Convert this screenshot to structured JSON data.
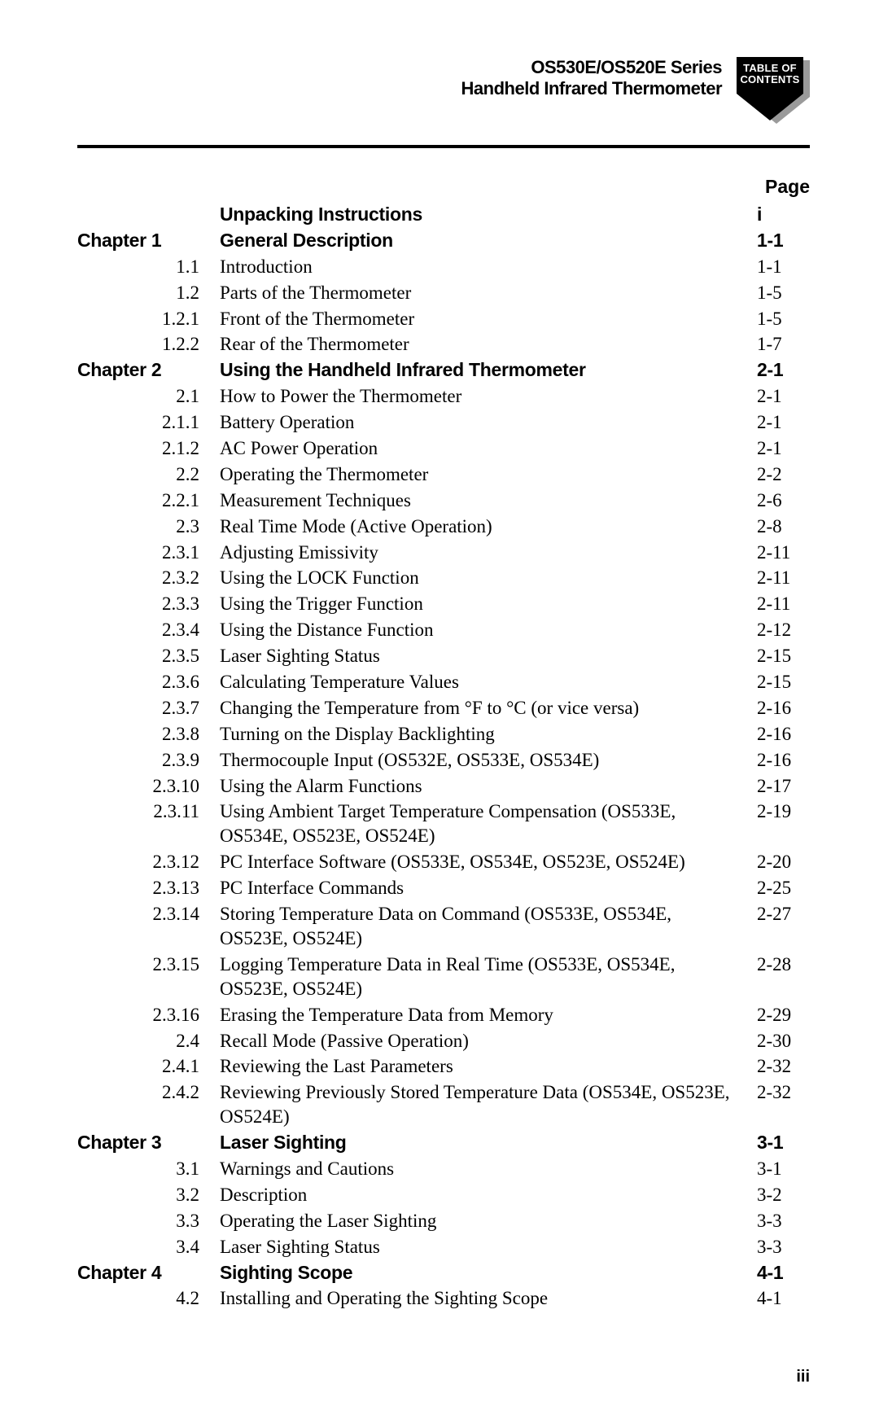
{
  "header": {
    "line1": "OS530E/OS520E Series",
    "line2": "Handheld Infrared Thermometer",
    "badge_line1": "TABLE OF",
    "badge_line2": "CONTENTS",
    "badge_fill": "#000000",
    "badge_shadow": "#9a9a9a"
  },
  "page_label": "Page",
  "footer": "iii",
  "toc": [
    {
      "bold": true,
      "num": "",
      "title": "Unpacking Instructions",
      "page": "i"
    },
    {
      "bold": true,
      "num": "Chapter  1",
      "title": "General Description",
      "page": "1-1"
    },
    {
      "bold": false,
      "num": "1.1",
      "title": "Introduction",
      "page": "1-1"
    },
    {
      "bold": false,
      "num": "1.2",
      "title": "Parts of the Thermometer",
      "page": "1-5"
    },
    {
      "bold": false,
      "num": "1.2.1",
      "title": "Front of the Thermometer",
      "page": "1-5"
    },
    {
      "bold": false,
      "num": "1.2.2",
      "title": "Rear of the Thermometer",
      "page": "1-7"
    },
    {
      "bold": true,
      "num": "Chapter  2",
      "title": "Using the Handheld Infrared Thermometer",
      "page": "2-1"
    },
    {
      "bold": false,
      "num": "2.1",
      "title": "How to Power the Thermometer",
      "page": "2-1"
    },
    {
      "bold": false,
      "num": "2.1.1",
      "title": "Battery Operation",
      "page": "2-1"
    },
    {
      "bold": false,
      "num": "2.1.2",
      "title": "AC Power Operation",
      "page": "2-1"
    },
    {
      "bold": false,
      "num": "2.2",
      "title": "Operating the Thermometer",
      "page": "2-2"
    },
    {
      "bold": false,
      "num": "2.2.1",
      "title": "Measurement Techniques",
      "page": "2-6"
    },
    {
      "bold": false,
      "num": "2.3",
      "title": "Real Time Mode (Active Operation)",
      "page": "2-8"
    },
    {
      "bold": false,
      "num": "2.3.1",
      "title": "Adjusting Emissivity",
      "page": "2-11"
    },
    {
      "bold": false,
      "num": "2.3.2",
      "title": "Using the LOCK Function",
      "page": "2-11"
    },
    {
      "bold": false,
      "num": "2.3.3",
      "title": "Using the Trigger Function",
      "page": "2-11"
    },
    {
      "bold": false,
      "num": "2.3.4",
      "title": "Using the Distance Function",
      "page": "2-12"
    },
    {
      "bold": false,
      "num": "2.3.5",
      "title": "Laser Sighting Status",
      "page": "2-15"
    },
    {
      "bold": false,
      "num": "2.3.6",
      "title": "Calculating Temperature Values",
      "page": "2-15"
    },
    {
      "bold": false,
      "num": "2.3.7",
      "title": "Changing the Temperature from °F to °C (or vice versa)",
      "page": "2-16"
    },
    {
      "bold": false,
      "num": "2.3.8",
      "title": "Turning on the Display Backlighting",
      "page": "2-16"
    },
    {
      "bold": false,
      "num": "2.3.9",
      "title": "Thermocouple Input (OS532E, OS533E, OS534E)",
      "page": "2-16"
    },
    {
      "bold": false,
      "num": "2.3.10",
      "title": "Using the Alarm Functions",
      "page": "2-17"
    },
    {
      "bold": false,
      "num": "2.3.11",
      "title": "Using Ambient Target Temperature Compensation (OS533E, OS534E, OS523E, OS524E)",
      "page": "2-19"
    },
    {
      "bold": false,
      "num": "2.3.12",
      "title": "PC Interface Software (OS533E, OS534E, OS523E, OS524E)",
      "page": "2-20"
    },
    {
      "bold": false,
      "num": "2.3.13",
      "title": "PC Interface Commands",
      "page": "2-25"
    },
    {
      "bold": false,
      "num": "2.3.14",
      "title": "Storing Temperature Data on Command (OS533E, OS534E, OS523E, OS524E)",
      "page": "2-27"
    },
    {
      "bold": false,
      "num": "2.3.15",
      "title": "Logging Temperature Data in Real Time (OS533E, OS534E, OS523E, OS524E)",
      "page": "2-28"
    },
    {
      "bold": false,
      "num": "2.3.16",
      "title": "Erasing the Temperature Data from Memory",
      "page": "2-29"
    },
    {
      "bold": false,
      "num": "2.4",
      "title": "Recall Mode (Passive Operation)",
      "page": "2-30"
    },
    {
      "bold": false,
      "num": "2.4.1",
      "title": "Reviewing the Last Parameters",
      "page": "2-32"
    },
    {
      "bold": false,
      "num": "2.4.2",
      "title": "Reviewing Previously Stored Temperature Data (OS534E, OS523E, OS524E)",
      "page": "2-32"
    },
    {
      "bold": true,
      "num": "Chapter  3",
      "title": "Laser Sighting",
      "page": "3-1"
    },
    {
      "bold": false,
      "num": "3.1",
      "title": "Warnings and Cautions",
      "page": "3-1"
    },
    {
      "bold": false,
      "num": "3.2",
      "title": "Description",
      "page": "3-2"
    },
    {
      "bold": false,
      "num": "3.3",
      "title": "Operating the Laser Sighting",
      "page": "3-3"
    },
    {
      "bold": false,
      "num": "3.4",
      "title": "Laser Sighting Status",
      "page": "3-3"
    },
    {
      "bold": true,
      "num": "Chapter  4",
      "title": "Sighting Scope",
      "page": "4-1"
    },
    {
      "bold": false,
      "num": "4.2",
      "title": "Installing and Operating the Sighting Scope",
      "page": "4-1"
    }
  ]
}
